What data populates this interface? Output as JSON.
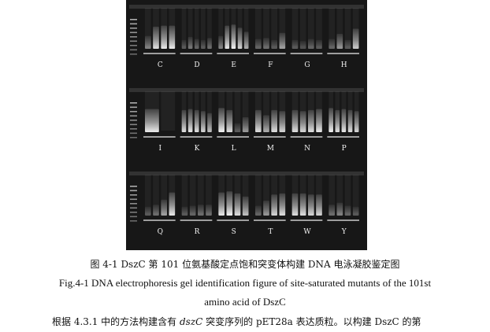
{
  "figure": {
    "rows": [
      {
        "groups": [
          {
            "label": "C",
            "lanes": [
              0.4,
              0.85,
              0.9,
              0.9
            ]
          },
          {
            "label": "D",
            "lanes": [
              0.2,
              0.35,
              0.25,
              0.2,
              0.3
            ]
          },
          {
            "label": "E",
            "lanes": [
              0.4,
              0.9,
              0.95,
              0.8,
              0.6
            ]
          },
          {
            "label": "F",
            "lanes": [
              0.25,
              0.3,
              0.2,
              0.55
            ]
          },
          {
            "label": "G",
            "lanes": [
              0.2,
              0.15,
              0.25,
              0.2
            ]
          },
          {
            "label": "H",
            "lanes": [
              0.25,
              0.5,
              0.2,
              0.75
            ]
          }
        ]
      },
      {
        "groups": [
          {
            "label": "I",
            "lanes": [
              0.9,
              0.0
            ]
          },
          {
            "label": "K",
            "lanes": [
              0.85,
              0.9,
              0.85,
              0.8,
              0.7
            ]
          },
          {
            "label": "L",
            "lanes": [
              0.95,
              0.85,
              0.2,
              0.5
            ]
          },
          {
            "label": "M",
            "lanes": [
              0.85,
              0.6,
              0.85,
              0.8
            ]
          },
          {
            "label": "N",
            "lanes": [
              0.85,
              0.8,
              0.85,
              0.9
            ]
          },
          {
            "label": "P",
            "lanes": [
              0.95,
              0.85,
              0.9,
              0.85,
              0.8
            ]
          }
        ]
      },
      {
        "groups": [
          {
            "label": "Q",
            "lanes": [
              0.2,
              0.3,
              0.55,
              0.9
            ]
          },
          {
            "label": "R",
            "lanes": [
              0.2,
              0.25,
              0.3,
              0.3
            ]
          },
          {
            "label": "S",
            "lanes": [
              0.9,
              0.95,
              0.85,
              0.7
            ]
          },
          {
            "label": "T",
            "lanes": [
              0.25,
              0.5,
              0.8,
              0.85
            ]
          },
          {
            "label": "W",
            "lanes": [
              0.85,
              0.85,
              0.8,
              0.8
            ]
          },
          {
            "label": "Y",
            "lanes": [
              0.3,
              0.4,
              0.25,
              0.2
            ]
          }
        ]
      }
    ]
  },
  "captions": {
    "cn": "图 4-1 DszC 第 101 位氨基酸定点饱和突变体构建 DNA 电泳凝胶鉴定图",
    "en_line1": "Fig.4-1 DNA electrophoresis gel identification figure of site-saturated mutants of the 101st",
    "en_line2": "amino acid of DszC"
  },
  "body": {
    "part1": "根据 4.3.1 中的方法构建含有 ",
    "italic": "dszC",
    "part2": " 突变序列的 pET28a 表达质粒。以构建 DszC 的第"
  }
}
